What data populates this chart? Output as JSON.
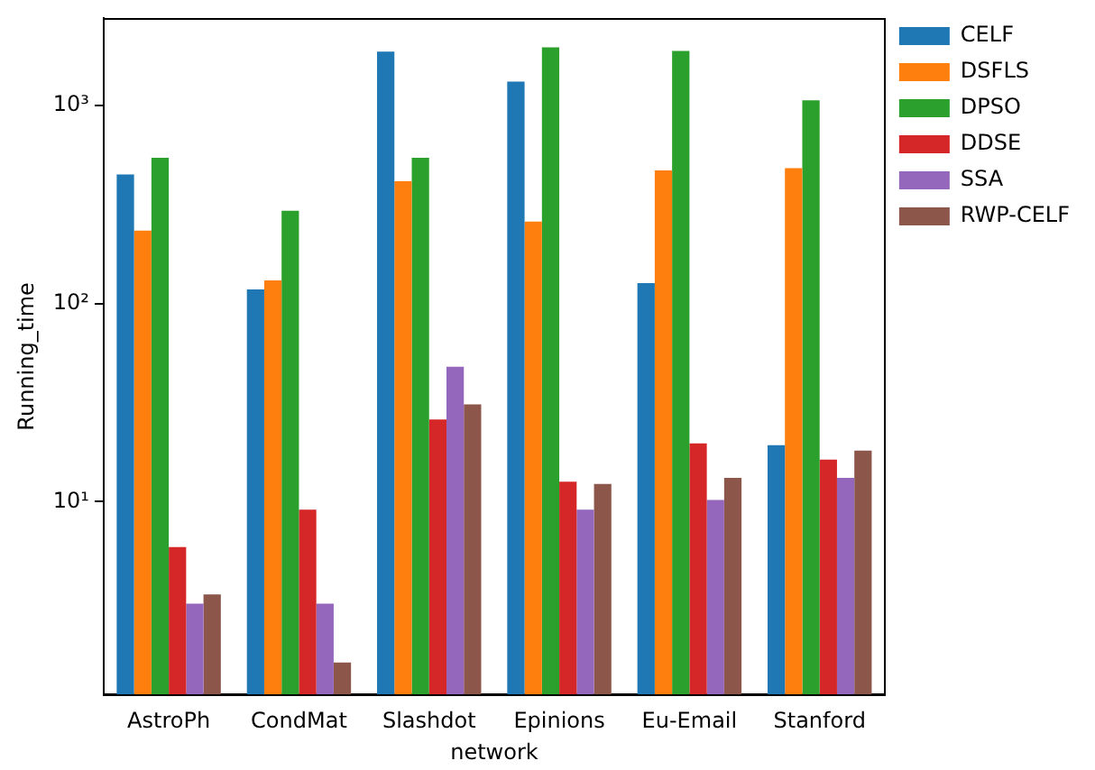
{
  "chart_data": {
    "type": "bar",
    "xlabel": "network",
    "ylabel": "Running_time",
    "categories": [
      "AstroPh",
      "CondMat",
      "Slashdot",
      "Epinions",
      "Eu-Email",
      "Stanford"
    ],
    "series": [
      {
        "name": "CELF",
        "color": "#1f77b4",
        "values": [
          449,
          118,
          1875,
          1323,
          127,
          19.3
        ]
      },
      {
        "name": "DSFLS",
        "color": "#ff7f0e",
        "values": [
          234,
          131,
          415,
          260,
          471,
          484
        ]
      },
      {
        "name": "DPSO",
        "color": "#2ca02c",
        "values": [
          545,
          295,
          545,
          1970,
          1890,
          1065
        ]
      },
      {
        "name": "DDSE",
        "color": "#d62728",
        "values": [
          5.9,
          9.1,
          26,
          12.6,
          19.7,
          16.3
        ]
      },
      {
        "name": "SSA",
        "color": "#9467bd",
        "values": [
          3.05,
          3.05,
          48,
          9.1,
          10.2,
          13.2
        ]
      },
      {
        "name": "RWP-CELF",
        "color": "#8c564b",
        "values": [
          3.4,
          1.54,
          31,
          12.3,
          13.2,
          18.1
        ]
      }
    ],
    "log": "y",
    "ylim": [
      1.06,
      2760
    ],
    "yticks": [
      {
        "value": 10,
        "label": "10¹"
      },
      {
        "value": 100,
        "label": "10²"
      },
      {
        "value": 1000,
        "label": "10³"
      }
    ],
    "grid": false,
    "legend": "top right"
  }
}
